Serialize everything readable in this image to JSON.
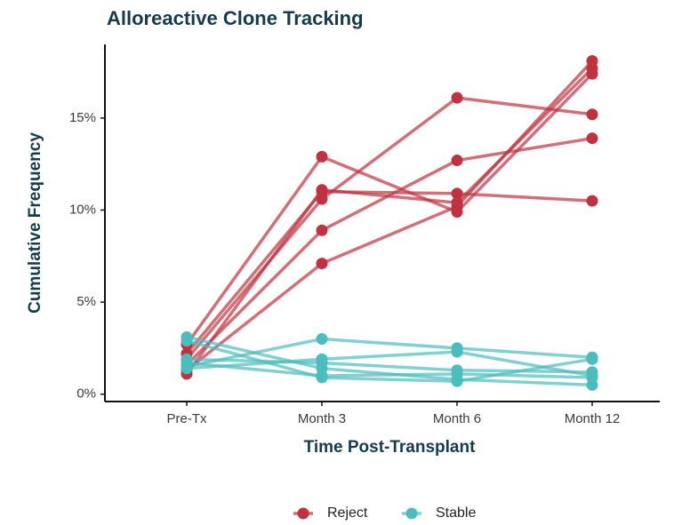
{
  "chart_data": {
    "type": "line",
    "title": "Alloreactive Clone Tracking",
    "xlabel": "Time Post-Transplant",
    "ylabel": "Cumulative Frequency",
    "categories": [
      "Pre-Tx",
      "Month 3",
      "Month 6",
      "Month 12"
    ],
    "ylim": [
      -0.4,
      19
    ],
    "yticks": [
      {
        "value": 0,
        "label": "0%"
      },
      {
        "value": 5,
        "label": "5%"
      },
      {
        "value": 10,
        "label": "10%"
      },
      {
        "value": 15,
        "label": "15%"
      }
    ],
    "legend": "bottom",
    "groups": [
      {
        "name": "Reject",
        "color": "#c0323f",
        "lines": [
          [
            2.7,
            12.9,
            9.9,
            17.4
          ],
          [
            2.2,
            11.0,
            10.9,
            10.5
          ],
          [
            1.9,
            10.6,
            16.1,
            15.2
          ],
          [
            1.6,
            8.9,
            12.7,
            13.9
          ],
          [
            1.3,
            7.1,
            10.2,
            18.1
          ],
          [
            1.1,
            11.1,
            10.4,
            17.7
          ]
        ]
      },
      {
        "name": "Stable",
        "color": "#4bbdbd",
        "lines": [
          [
            1.5,
            3.0,
            2.5,
            2.0
          ],
          [
            3.1,
            1.4,
            0.8,
            0.5
          ],
          [
            1.4,
            1.9,
            2.3,
            1.0
          ],
          [
            2.9,
            0.9,
            0.7,
            1.9
          ],
          [
            1.9,
            1.7,
            1.3,
            1.2
          ],
          [
            1.7,
            1.0,
            1.1,
            0.9
          ]
        ]
      }
    ]
  }
}
